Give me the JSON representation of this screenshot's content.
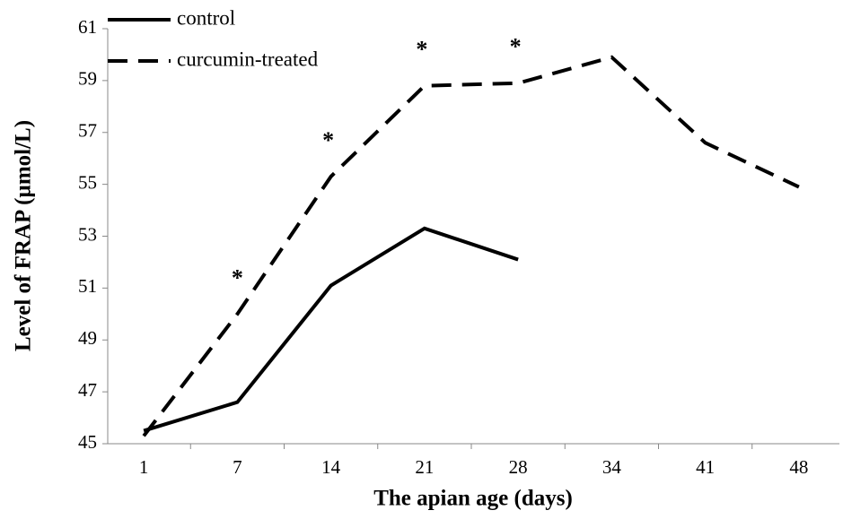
{
  "chart_data": {
    "type": "line",
    "xlabel": "The apian age (days)",
    "ylabel": "Level of FRAP (µmol/L)",
    "categories": [
      "1",
      "7",
      "14",
      "21",
      "28",
      "34",
      "41",
      "48"
    ],
    "series": [
      {
        "name": "control",
        "color": "#000000",
        "dash": "solid",
        "values": [
          45.5,
          46.6,
          51.1,
          53.3,
          52.1,
          null,
          null,
          null
        ]
      },
      {
        "name": "curcumin-treated",
        "color": "#000000",
        "dash": "dashed",
        "values": [
          45.3,
          50.0,
          55.3,
          58.8,
          58.9,
          59.9,
          56.6,
          54.9
        ]
      }
    ],
    "annotations": [
      {
        "text": "*",
        "category": "7"
      },
      {
        "text": "*",
        "category": "14"
      },
      {
        "text": "*",
        "category": "21"
      },
      {
        "text": "*",
        "category": "28"
      }
    ],
    "ylim": [
      45,
      61
    ],
    "yticks": [
      45,
      47,
      49,
      51,
      53,
      55,
      57,
      59,
      61
    ],
    "legend": "upper left",
    "grid": false
  }
}
